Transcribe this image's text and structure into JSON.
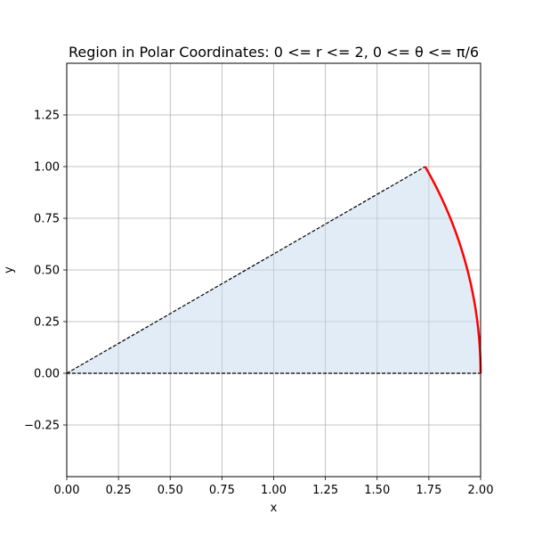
{
  "chart_data": {
    "type": "area",
    "title": "Region in Polar Coordinates: 0 <= r <= 2, 0 <= θ <= π/6",
    "xlabel": "x",
    "ylabel": "y",
    "xlim": [
      0.0,
      2.0
    ],
    "ylim": [
      -0.5,
      1.5
    ],
    "grid": true,
    "xticks": [
      "0.00",
      "0.25",
      "0.50",
      "0.75",
      "1.00",
      "1.25",
      "1.50",
      "1.75",
      "2.00"
    ],
    "yticks": [
      "−0.25",
      "0.00",
      "0.25",
      "0.50",
      "0.75",
      "1.00",
      "1.25"
    ],
    "polar_region": {
      "r_min": 0,
      "r_max": 2,
      "theta_min_rad": 0,
      "theta_max_rad": 0.5235987756
    },
    "series": [
      {
        "kind": "fill",
        "x": [
          0,
          2.0,
          1.932,
          1.732,
          0
        ],
        "y": [
          0,
          0.0,
          0.518,
          1.0,
          0
        ],
        "color": "#c6d9ee"
      },
      {
        "kind": "dashed-ray",
        "x": [
          0,
          1.732
        ],
        "y": [
          0,
          1.0
        ],
        "color": "#000000"
      },
      {
        "kind": "dashed-ray",
        "x": [
          0,
          2.0
        ],
        "y": [
          0,
          0.0
        ],
        "color": "#000000"
      },
      {
        "kind": "arc",
        "r": 2,
        "color": "#ff0000"
      }
    ],
    "colors": {
      "fill": "#c6d9ee",
      "arc": "#ff0000",
      "rays": "#000000",
      "grid": "#b0b0b0"
    }
  }
}
